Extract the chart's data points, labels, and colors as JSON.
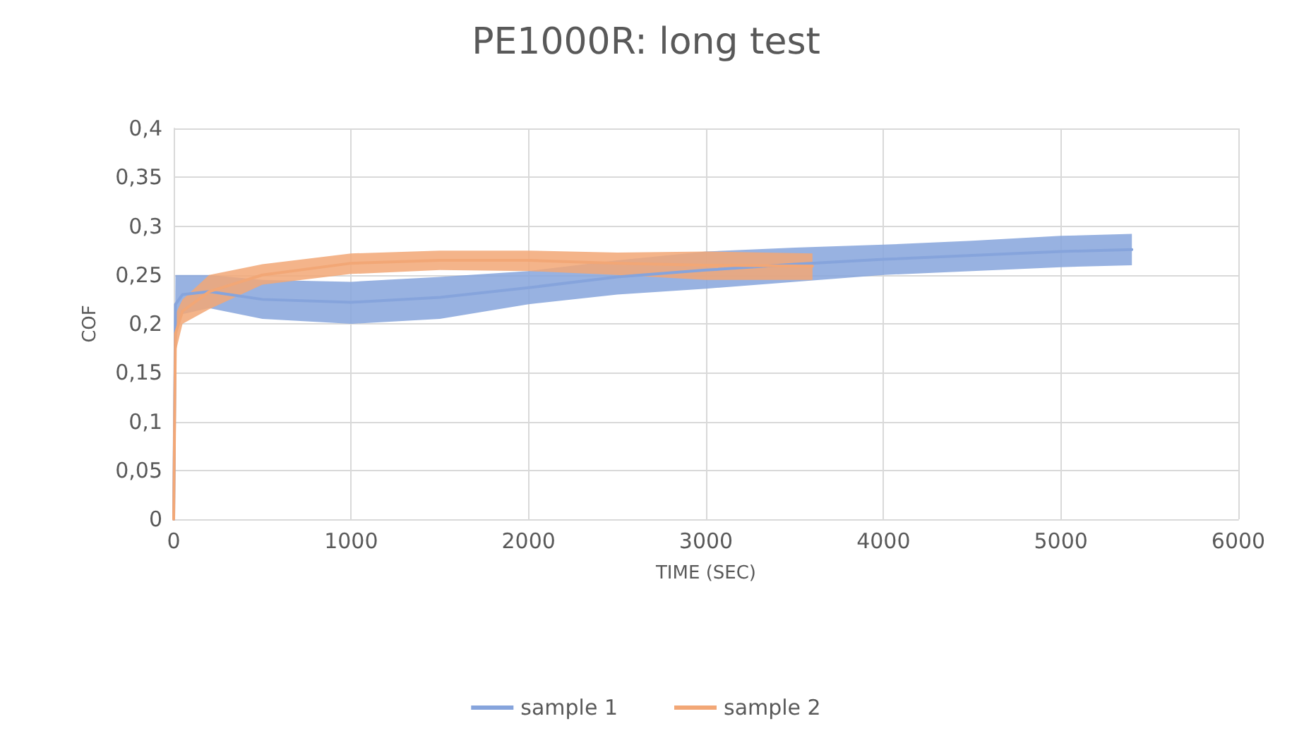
{
  "chart_data": {
    "type": "line",
    "title": "PE1000R: long test",
    "xlabel": "TIME (SEC)",
    "ylabel": "COF",
    "xlim": [
      0,
      6000
    ],
    "xticks": [
      0,
      1000,
      2000,
      3000,
      4000,
      5000,
      6000
    ],
    "ylim": [
      0,
      0.4
    ],
    "yticks": [
      {
        "value": 0,
        "label": "0"
      },
      {
        "value": 0.05,
        "label": "0,05"
      },
      {
        "value": 0.1,
        "label": "0,1"
      },
      {
        "value": 0.15,
        "label": "0,15"
      },
      {
        "value": 0.2,
        "label": "0,2"
      },
      {
        "value": 0.25,
        "label": "0,25"
      },
      {
        "value": 0.3,
        "label": "0,3"
      },
      {
        "value": 0.35,
        "label": "0,35"
      },
      {
        "value": 0.4,
        "label": "0,4"
      }
    ],
    "grid": true,
    "legend": "bottom",
    "line_style": "solid",
    "marker": "none",
    "series": [
      {
        "name": "sample 1",
        "color": "#86a4dc",
        "x": [
          0,
          10,
          50,
          200,
          500,
          1000,
          1500,
          2000,
          2500,
          3000,
          3500,
          4000,
          4500,
          5000,
          5400
        ],
        "values": [
          0,
          0.22,
          0.23,
          0.233,
          0.225,
          0.222,
          0.227,
          0.237,
          0.248,
          0.255,
          0.261,
          0.266,
          0.27,
          0.274,
          0.276
        ],
        "lower": [
          0,
          0.19,
          0.21,
          0.216,
          0.205,
          0.2,
          0.205,
          0.22,
          0.23,
          0.236,
          0.243,
          0.25,
          0.254,
          0.258,
          0.26
        ],
        "upper": [
          0,
          0.25,
          0.25,
          0.25,
          0.245,
          0.243,
          0.248,
          0.254,
          0.265,
          0.274,
          0.278,
          0.281,
          0.285,
          0.29,
          0.292
        ]
      },
      {
        "name": "sample 2",
        "color": "#f2a776",
        "x": [
          0,
          10,
          50,
          200,
          500,
          1000,
          1500,
          2000,
          2500,
          3000,
          3600
        ],
        "values": [
          0,
          0.19,
          0.213,
          0.233,
          0.25,
          0.262,
          0.265,
          0.265,
          0.262,
          0.26,
          0.259
        ],
        "lower": [
          0,
          0.17,
          0.2,
          0.215,
          0.24,
          0.251,
          0.255,
          0.254,
          0.25,
          0.245,
          0.245
        ],
        "upper": [
          0,
          0.21,
          0.225,
          0.25,
          0.261,
          0.272,
          0.275,
          0.275,
          0.273,
          0.274,
          0.272
        ]
      }
    ]
  }
}
